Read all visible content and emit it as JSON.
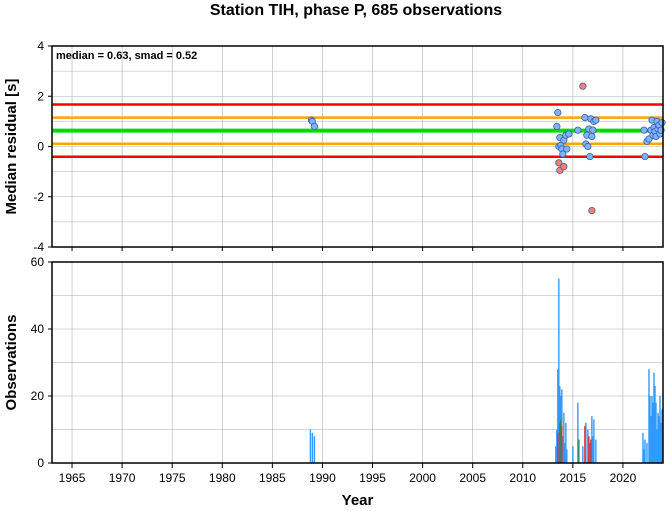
{
  "chart_data": [
    {
      "type": "scatter",
      "title": "Station TIH, phase P, 685 observations",
      "ylabel": "Median residual [s]",
      "annotation": "median = 0.63, smad = 0.52",
      "xlim": [
        1963,
        2024
      ],
      "ylim": [
        -4,
        4
      ],
      "x_ticks": [
        1965,
        1970,
        1975,
        1980,
        1985,
        1990,
        1995,
        2000,
        2005,
        2010,
        2015,
        2020
      ],
      "y_ticks": [
        -4,
        -2,
        0,
        2,
        4
      ],
      "grid": true,
      "reference_lines": [
        {
          "y": 0.63,
          "color": "#00dd00",
          "label": "median"
        },
        {
          "y": 1.15,
          "color": "#ffa500"
        },
        {
          "y": 0.11,
          "color": "#ffa500"
        },
        {
          "y": 1.67,
          "color": "#ff0000"
        },
        {
          "y": -0.41,
          "color": "#ff0000"
        }
      ],
      "series": [
        {
          "color": "#7fb2ff",
          "points": [
            [
              1988.9,
              1.05
            ],
            [
              1989.0,
              1.0
            ],
            [
              1989.2,
              0.8
            ],
            [
              2013.4,
              0.8
            ],
            [
              2013.5,
              1.35
            ],
            [
              2013.6,
              0.0
            ],
            [
              2013.7,
              0.35
            ],
            [
              2013.8,
              0.05
            ],
            [
              2013.9,
              -0.1
            ],
            [
              2014.0,
              -0.3
            ],
            [
              2014.1,
              0.25
            ],
            [
              2014.3,
              0.45
            ],
            [
              2014.4,
              -0.1
            ],
            [
              2014.6,
              0.5
            ],
            [
              2015.5,
              0.65
            ],
            [
              2016.2,
              1.15
            ],
            [
              2016.3,
              0.1
            ],
            [
              2016.4,
              0.45
            ],
            [
              2016.5,
              0.0
            ],
            [
              2016.6,
              0.7
            ],
            [
              2016.7,
              -0.4
            ],
            [
              2016.8,
              1.1
            ],
            [
              2016.9,
              0.4
            ],
            [
              2017.0,
              0.65
            ],
            [
              2017.1,
              1.0
            ],
            [
              2017.3,
              1.05
            ],
            [
              2022.1,
              0.65
            ],
            [
              2022.2,
              -0.4
            ],
            [
              2022.4,
              0.2
            ],
            [
              2022.6,
              0.3
            ],
            [
              2022.8,
              0.65
            ],
            [
              2022.9,
              1.05
            ],
            [
              2023.0,
              0.45
            ],
            [
              2023.1,
              0.75
            ],
            [
              2023.2,
              0.6
            ],
            [
              2023.3,
              0.4
            ],
            [
              2023.4,
              1.0
            ],
            [
              2023.5,
              0.7
            ],
            [
              2023.6,
              0.85
            ],
            [
              2023.7,
              0.5
            ],
            [
              2023.8,
              0.65
            ],
            [
              2023.9,
              0.95
            ]
          ]
        },
        {
          "color": "#ff7f6e",
          "points": [
            [
              2013.6,
              -0.65
            ],
            [
              2013.7,
              -0.95
            ],
            [
              2014.1,
              -0.8
            ],
            [
              2016.0,
              2.4
            ],
            [
              2016.9,
              -2.55
            ]
          ]
        }
      ]
    },
    {
      "type": "bar",
      "xlabel": "Year",
      "ylabel": "Observations",
      "xlim": [
        1963,
        2024
      ],
      "ylim": [
        0,
        60
      ],
      "x_ticks": [
        1965,
        1970,
        1975,
        1980,
        1985,
        1990,
        1995,
        2000,
        2005,
        2010,
        2015,
        2020
      ],
      "y_ticks": [
        0,
        20,
        40,
        60
      ],
      "grid": true,
      "series": [
        {
          "color": "#3399ff",
          "bars": [
            [
              1988.8,
              10
            ],
            [
              1989.0,
              9
            ],
            [
              1989.2,
              8
            ],
            [
              2013.3,
              5
            ],
            [
              2013.4,
              10
            ],
            [
              2013.5,
              28
            ],
            [
              2013.6,
              55
            ],
            [
              2013.7,
              23
            ],
            [
              2013.8,
              20
            ],
            [
              2013.9,
              22
            ],
            [
              2014.0,
              8
            ],
            [
              2014.1,
              15
            ],
            [
              2014.2,
              6
            ],
            [
              2014.3,
              12
            ],
            [
              2014.4,
              4
            ],
            [
              2015.0,
              5
            ],
            [
              2015.5,
              18
            ],
            [
              2016.0,
              5
            ],
            [
              2016.3,
              12
            ],
            [
              2016.5,
              10
            ],
            [
              2016.7,
              6
            ],
            [
              2016.9,
              14
            ],
            [
              2017.0,
              8
            ],
            [
              2017.1,
              13
            ],
            [
              2017.3,
              7
            ],
            [
              2022.0,
              9
            ],
            [
              2022.1,
              4
            ],
            [
              2022.2,
              7
            ],
            [
              2022.4,
              6
            ],
            [
              2022.6,
              28
            ],
            [
              2022.7,
              20
            ],
            [
              2022.8,
              14
            ],
            [
              2022.9,
              20
            ],
            [
              2023.0,
              18
            ],
            [
              2023.1,
              27
            ],
            [
              2023.2,
              23
            ],
            [
              2023.3,
              18
            ],
            [
              2023.4,
              10
            ],
            [
              2023.5,
              15
            ],
            [
              2023.6,
              14
            ],
            [
              2023.7,
              20
            ],
            [
              2023.8,
              12
            ],
            [
              2023.9,
              16
            ]
          ]
        },
        {
          "color": "#e03030",
          "bars": [
            [
              2013.5,
              9
            ],
            [
              2013.7,
              12
            ],
            [
              2013.9,
              11
            ],
            [
              2016.2,
              11
            ],
            [
              2016.6,
              8
            ],
            [
              2016.8,
              7
            ]
          ]
        },
        {
          "color": "#2e8b57",
          "bars": [
            [
              2013.8,
              13
            ],
            [
              2015.6,
              7
            ]
          ]
        }
      ]
    }
  ]
}
